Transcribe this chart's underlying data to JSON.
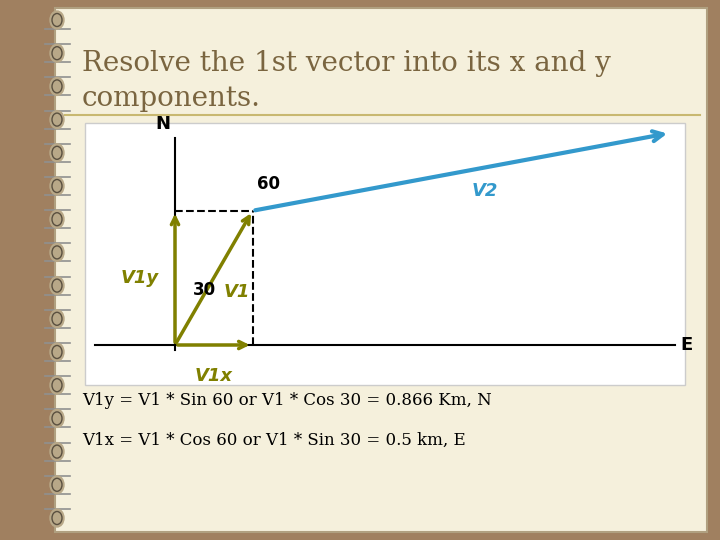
{
  "title_line1": "Resolve the 1st vector into its x and y",
  "title_line2": "components.",
  "title_color": "#7A6540",
  "title_fontsize": 20,
  "bg_outer": "#A08060",
  "bg_inner": "#F5F0DC",
  "v1_color": "#808000",
  "v2_color": "#3399CC",
  "axis_color": "#000000",
  "dashed_color": "#000000",
  "separator_color": "#C8B870",
  "text1": "V1y = V1 * Sin 60 or V1 * Cos 30 = 0.866 Km, N",
  "text2": "V1x = V1 * Cos 60 or V1 * Sin 30 = 0.5 km, E",
  "text_color": "#000000",
  "text_fontsize": 12,
  "n_spirals": 16
}
